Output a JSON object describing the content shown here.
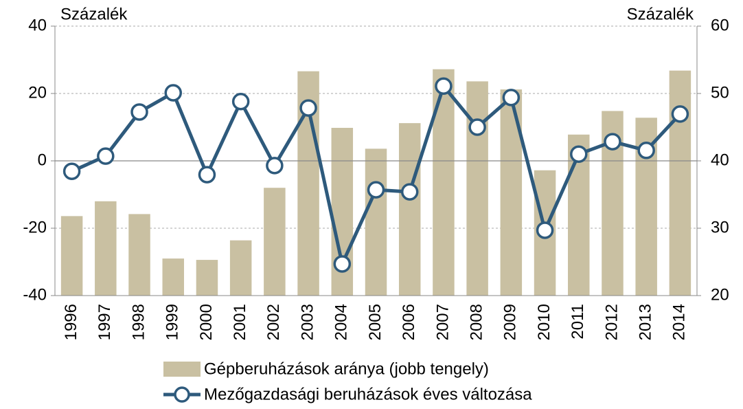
{
  "chart_data": {
    "type": "bar-line",
    "y_label": "Százalék",
    "y2_label": "Százalék",
    "categories": [
      "1996",
      "1997",
      "1998",
      "1999",
      "2000",
      "2001",
      "2002",
      "2003",
      "2004",
      "2005",
      "2006",
      "2007",
      "2008",
      "2009",
      "2010",
      "2011",
      "2012",
      "2013",
      "2014"
    ],
    "series": [
      {
        "name": "Gépberuházások aránya (jobb tengely)",
        "type": "bar",
        "axis": "y2",
        "color": "#c9c0a2",
        "values": [
          31.8,
          34.0,
          32.1,
          25.5,
          25.3,
          28.2,
          36.0,
          53.3,
          44.9,
          41.8,
          45.6,
          53.6,
          51.8,
          50.6,
          38.6,
          43.9,
          47.4,
          46.4,
          53.4
        ]
      },
      {
        "name": "Mezőgazdasági beruházások éves változása",
        "type": "line",
        "axis": "y",
        "color": "#2e5a7c",
        "values": [
          -3.1,
          1.4,
          14.5,
          20.2,
          -4.1,
          17.6,
          -1.4,
          15.7,
          -30.6,
          -8.6,
          -9.2,
          22.2,
          10.0,
          18.8,
          -20.6,
          2.0,
          5.7,
          3.1,
          13.9
        ]
      }
    ],
    "ylim": [
      -40,
      40
    ],
    "yticks": [
      -40,
      -20,
      0,
      20,
      40
    ],
    "y2lim": [
      20,
      60
    ],
    "y2ticks": [
      20,
      30,
      40,
      50,
      60
    ],
    "grid": true
  }
}
